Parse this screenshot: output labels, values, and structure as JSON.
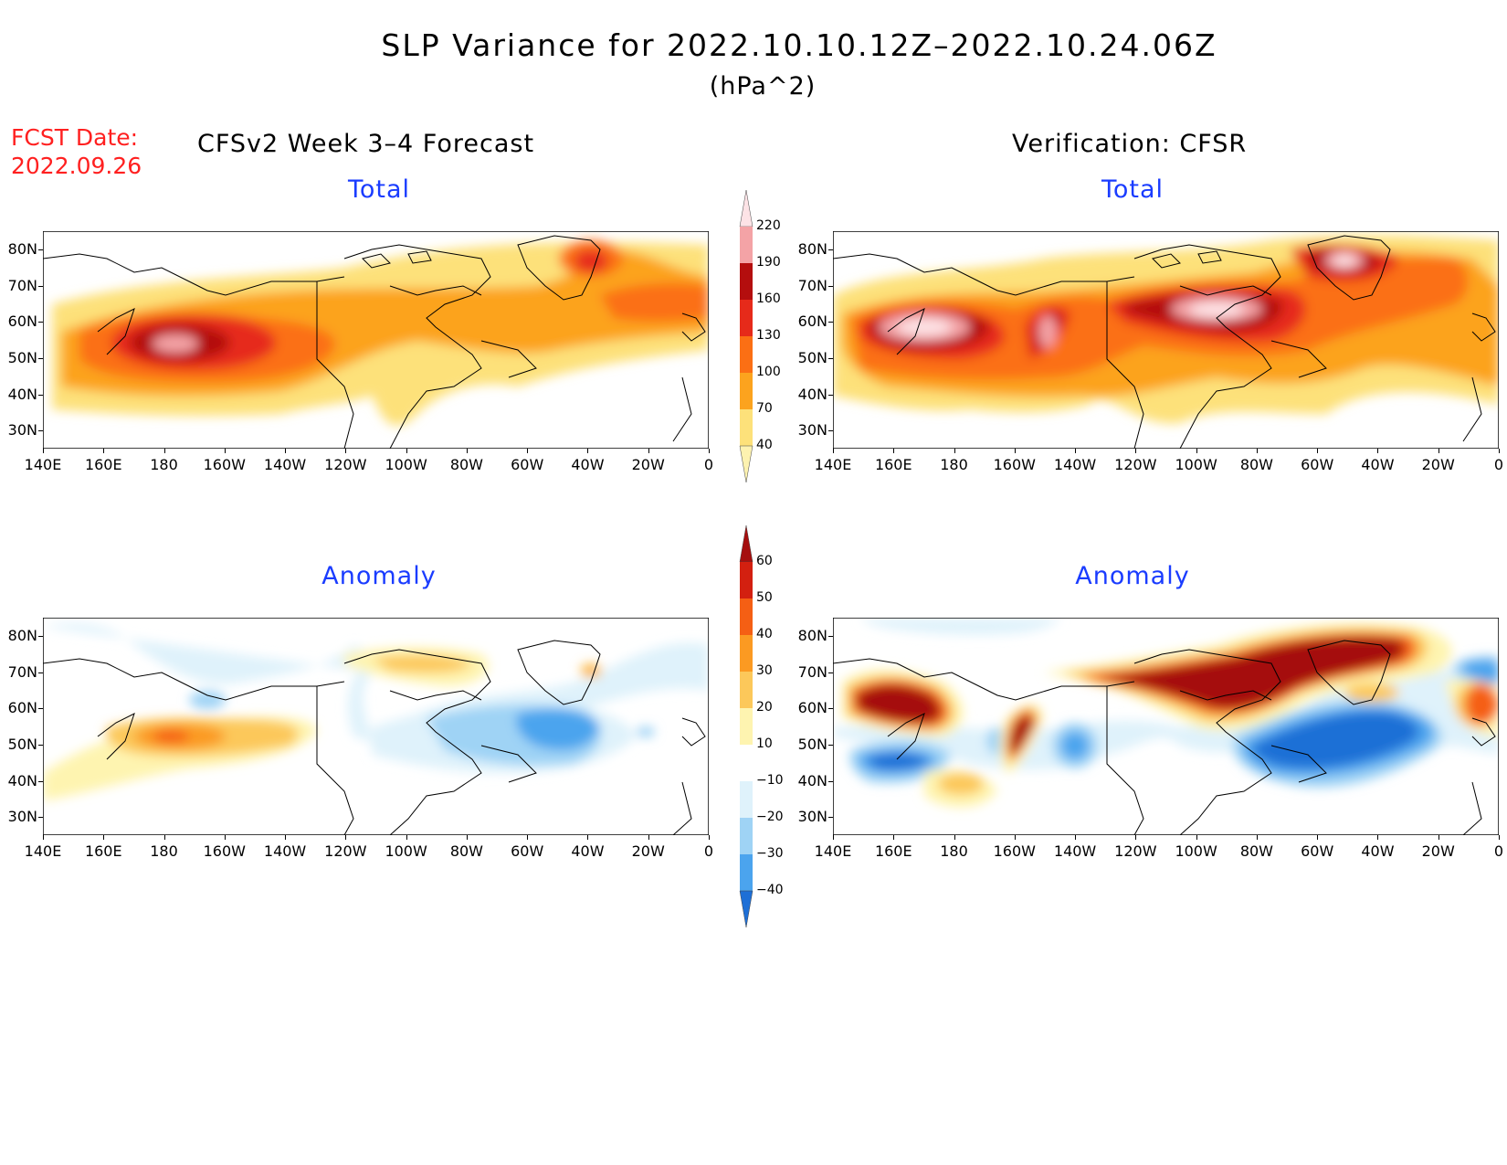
{
  "title": "SLP Variance for 2022.10.10.12Z–2022.10.24.06Z",
  "units": "(hPa^2)",
  "fcst_date": {
    "label": "FCST Date:",
    "value": "2022.09.26"
  },
  "left_heading": "CFSv2 Week 3–4 Forecast",
  "right_heading": "Verification: CFSR",
  "panels": {
    "forecast_total": {
      "subtitle": "Total"
    },
    "verification_total": {
      "subtitle": "Total"
    },
    "forecast_anomaly": {
      "subtitle": "Anomaly"
    },
    "verification_anomaly": {
      "subtitle": "Anomaly"
    }
  },
  "lat_labels": [
    "80N",
    "70N",
    "60N",
    "50N",
    "40N",
    "30N"
  ],
  "lon_labels": [
    "140E",
    "160E",
    "180",
    "160W",
    "140W",
    "120W",
    "100W",
    "80W",
    "60W",
    "40W",
    "20W",
    "0"
  ],
  "total_colorbar": {
    "levels": [
      "220",
      "190",
      "160",
      "130",
      "100",
      "70",
      "40"
    ],
    "colors": [
      "#fde3e6",
      "#f4a3a6",
      "#b40e0e",
      "#e62a1a",
      "#fb6f14",
      "#fca31e",
      "#fde17a",
      "#fdf2b0"
    ]
  },
  "anomaly_colorbar": {
    "levels": [
      "60",
      "50",
      "40",
      "30",
      "20",
      "10",
      "−10",
      "−20",
      "−30",
      "−40"
    ],
    "colors": [
      "#a50f0f",
      "#d32010",
      "#f55f14",
      "#fb9a22",
      "#fcc85a",
      "#fef4b0",
      "#ffffff",
      "#dff2fb",
      "#9fd3f5",
      "#4ba4ee",
      "#1e6fd6"
    ]
  },
  "chart_data": {
    "type": "heatmap",
    "variable": "SLP Variance",
    "units": "hPa^2",
    "x_range": [
      "140E",
      "0"
    ],
    "y_range": [
      "25N",
      "85N"
    ],
    "panels": [
      {
        "id": "forecast_total",
        "model": "CFSv2 Week 3–4 Forecast",
        "field": "Total",
        "features": [
          {
            "region": "North Pacific",
            "lon": "175E",
            "lat": "50N",
            "value_range": "190-220"
          },
          {
            "region": "Greenland",
            "lon": "40W",
            "lat": "72N",
            "value_range": "130-160"
          },
          {
            "region": "North Atlantic",
            "lon": "25W",
            "lat": "62N",
            "value_range": "100-130"
          },
          {
            "region": "Hudson Bay",
            "lon": "100W",
            "lat": "62N",
            "value_range": "70-100"
          }
        ]
      },
      {
        "id": "verification_total",
        "model": "CFSR",
        "field": "Total",
        "features": [
          {
            "region": "Kamchatka/NW Pacific",
            "lon": "165E",
            "lat": "52N",
            "value_range": ">220"
          },
          {
            "region": "Gulf of Alaska",
            "lon": "145W",
            "lat": "50N",
            "value_range": ">220"
          },
          {
            "region": "Hudson Bay",
            "lon": "85W",
            "lat": "60N",
            "value_range": ">220"
          },
          {
            "region": "Greenland",
            "lon": "40W",
            "lat": "74N",
            "value_range": ">220"
          },
          {
            "region": "Canadian Arctic",
            "lon": "120W",
            "lat": "64N",
            "value_range": "160-220"
          }
        ]
      },
      {
        "id": "forecast_anomaly",
        "model": "CFSv2 Week 3–4 Forecast",
        "field": "Anomaly",
        "features": [
          {
            "region": "North Pacific",
            "lon": "175E",
            "lat": "50N",
            "value_range": "40-50"
          },
          {
            "region": "Canadian Arctic",
            "lon": "100W",
            "lat": "70N",
            "value_range": "10-30"
          },
          {
            "region": "Labrador Sea / NW Atlantic",
            "lon": "55W",
            "lat": "52N",
            "value_range": "-30 to -40"
          },
          {
            "region": "Greenland",
            "lon": "40W",
            "lat": "71N",
            "value_range": "20-30"
          }
        ]
      },
      {
        "id": "verification_anomaly",
        "model": "CFSR",
        "field": "Anomaly",
        "features": [
          {
            "region": "Kamchatka",
            "lon": "160E",
            "lat": "57N",
            "value_range": ">60"
          },
          {
            "region": "Gulf of Alaska",
            "lon": "147W",
            "lat": "50N",
            "value_range": ">60"
          },
          {
            "region": "Canada / Greenland",
            "lon": "80W",
            "lat": "70N",
            "value_range": ">60"
          },
          {
            "region": "NW Pacific south",
            "lon": "162E",
            "lat": "42N",
            "value_range": "<-40"
          },
          {
            "region": "North Atlantic",
            "lon": "55W",
            "lat": "47N",
            "value_range": "<-40"
          },
          {
            "region": "NE Atlantic",
            "lon": "10W",
            "lat": "70N",
            "value_range": "-30 to -40"
          }
        ]
      }
    ]
  }
}
